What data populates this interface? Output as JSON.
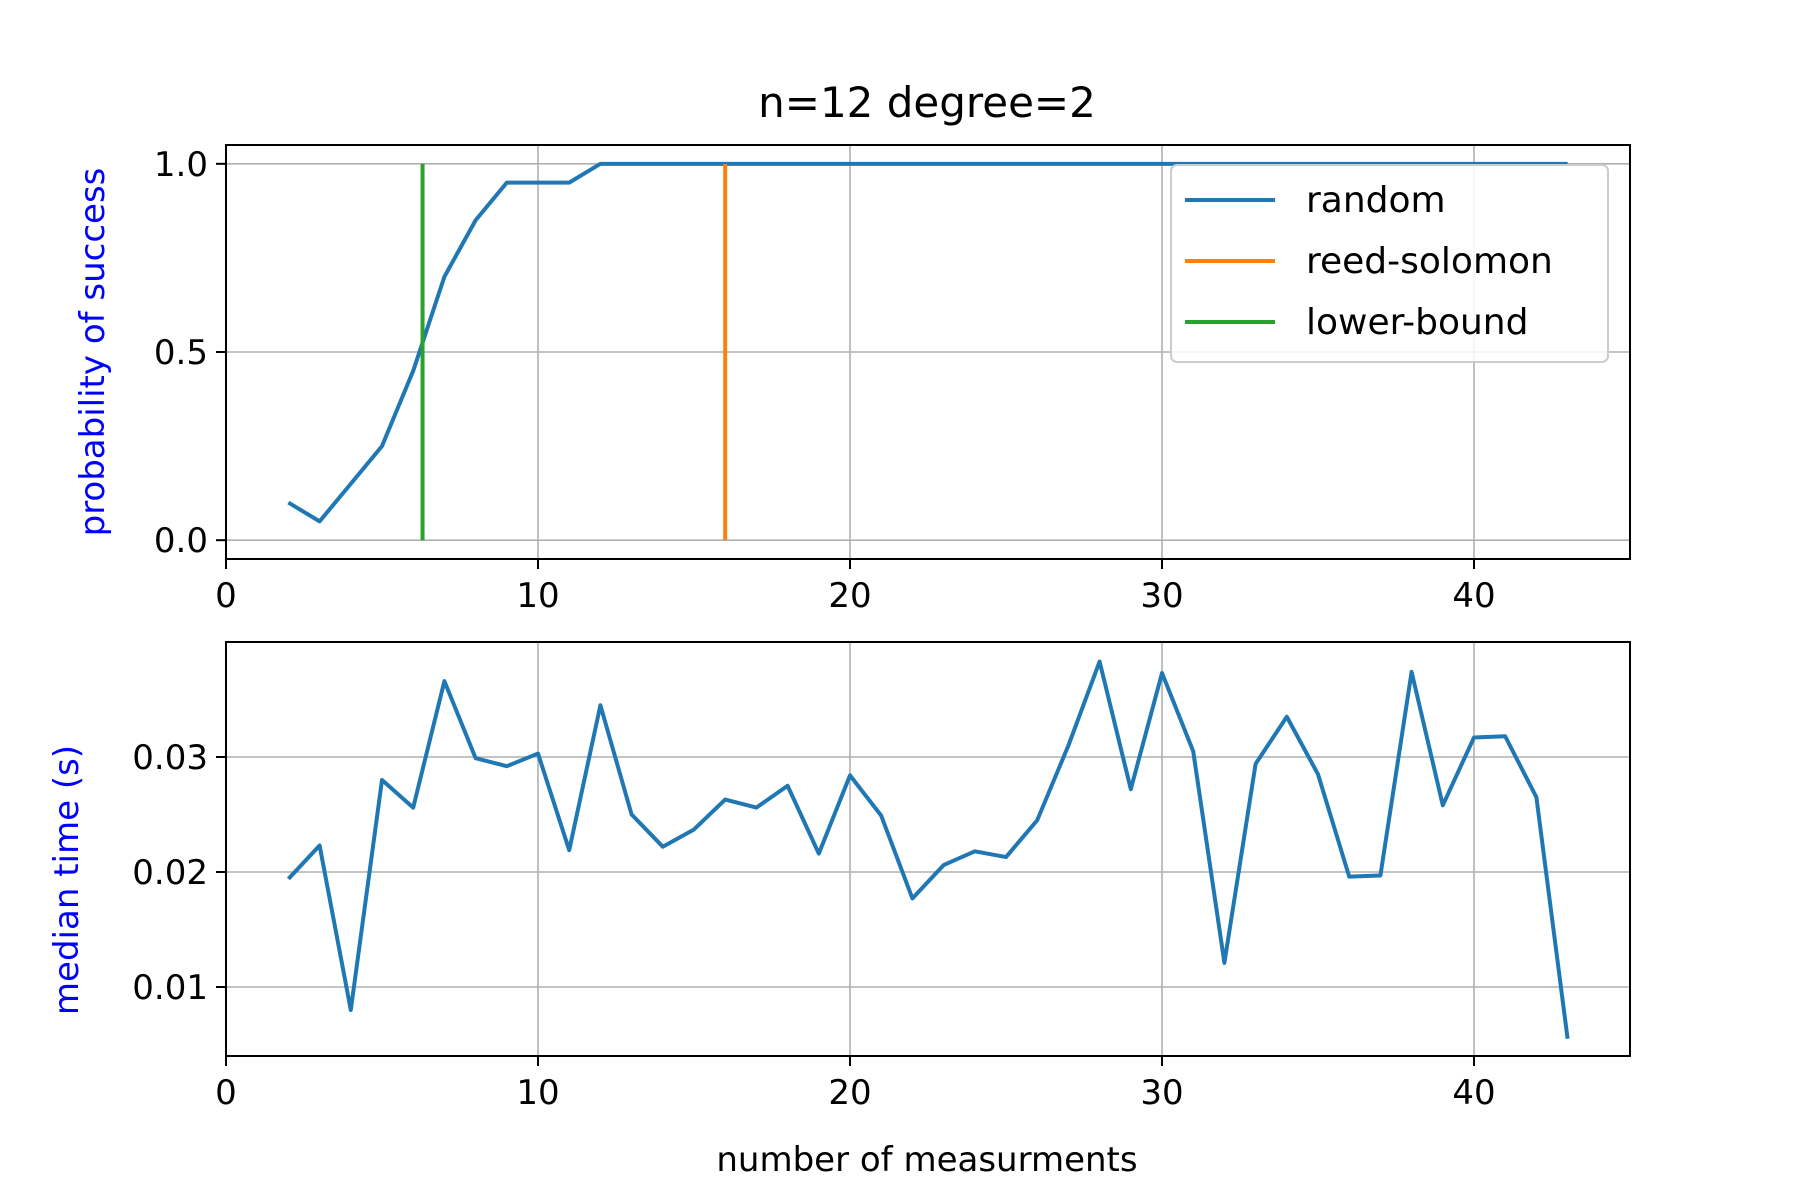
{
  "chart_data": [
    {
      "type": "line",
      "title": "n=12 degree=2",
      "xlabel": "",
      "ylabel": "probability of success",
      "ylabel_color": "#0000ff",
      "xlim": [
        0,
        45
      ],
      "ylim": [
        -0.05,
        1.05
      ],
      "xticks": [
        0,
        10,
        20,
        30,
        40
      ],
      "yticks": [
        0.0,
        0.5,
        1.0
      ],
      "ytick_labels": [
        "0.0",
        "0.5",
        "1.0"
      ],
      "grid": true,
      "legend_position": "upper-right",
      "series": [
        {
          "name": "random",
          "color": "#1f77b4",
          "x": [
            2,
            3,
            4,
            5,
            6,
            7,
            8,
            9,
            10,
            11,
            12,
            13,
            14,
            15,
            16,
            17,
            18,
            19,
            20,
            21,
            22,
            23,
            24,
            25,
            26,
            27,
            28,
            29,
            30,
            31,
            32,
            33,
            34,
            35,
            36,
            37,
            38,
            39,
            40,
            41,
            42,
            43
          ],
          "y": [
            0.1,
            0.05,
            0.15,
            0.25,
            0.45,
            0.7,
            0.85,
            0.95,
            0.95,
            0.95,
            1,
            1,
            1,
            1,
            1,
            1,
            1,
            1,
            1,
            1,
            1,
            1,
            1,
            1,
            1,
            1,
            1,
            1,
            1,
            1,
            1,
            1,
            1,
            1,
            1,
            1,
            1,
            1,
            1,
            1,
            1,
            1
          ]
        },
        {
          "name": "reed-solomon",
          "color": "#ff7f0e",
          "x": [
            16,
            16
          ],
          "y": [
            0,
            1
          ]
        },
        {
          "name": "lower-bound",
          "color": "#2ca02c",
          "x": [
            6.3,
            6.3
          ],
          "y": [
            0,
            1
          ]
        }
      ]
    },
    {
      "type": "line",
      "title": "",
      "xlabel": "number of measurments",
      "ylabel": "median time (s)",
      "ylabel_color": "#0000ff",
      "xlim": [
        0,
        45
      ],
      "ylim": [
        0.004,
        0.04
      ],
      "xticks": [
        0,
        10,
        20,
        30,
        40
      ],
      "yticks": [
        0.01,
        0.02,
        0.03
      ],
      "ytick_labels": [
        "0.01",
        "0.02",
        "0.03"
      ],
      "grid": true,
      "series": [
        {
          "color": "#1f77b4",
          "x": [
            2,
            3,
            4,
            5,
            6,
            7,
            8,
            9,
            10,
            11,
            12,
            13,
            14,
            15,
            16,
            17,
            18,
            19,
            20,
            21,
            22,
            23,
            24,
            25,
            26,
            27,
            28,
            29,
            30,
            31,
            32,
            33,
            34,
            35,
            36,
            37,
            38,
            39,
            40,
            41,
            42,
            43
          ],
          "y": [
            0.0194,
            0.0223,
            0.008,
            0.028,
            0.0256,
            0.0366,
            0.0299,
            0.0292,
            0.0303,
            0.0219,
            0.0345,
            0.025,
            0.0222,
            0.0237,
            0.0263,
            0.0256,
            0.0275,
            0.0216,
            0.0284,
            0.0249,
            0.0177,
            0.0206,
            0.0218,
            0.0213,
            0.0245,
            0.031,
            0.0383,
            0.0272,
            0.0373,
            0.0305,
            0.0121,
            0.0294,
            0.0335,
            0.0285,
            0.0196,
            0.0197,
            0.0374,
            0.0258,
            0.0317,
            0.0318,
            0.0265,
            0.0055
          ]
        }
      ]
    }
  ]
}
